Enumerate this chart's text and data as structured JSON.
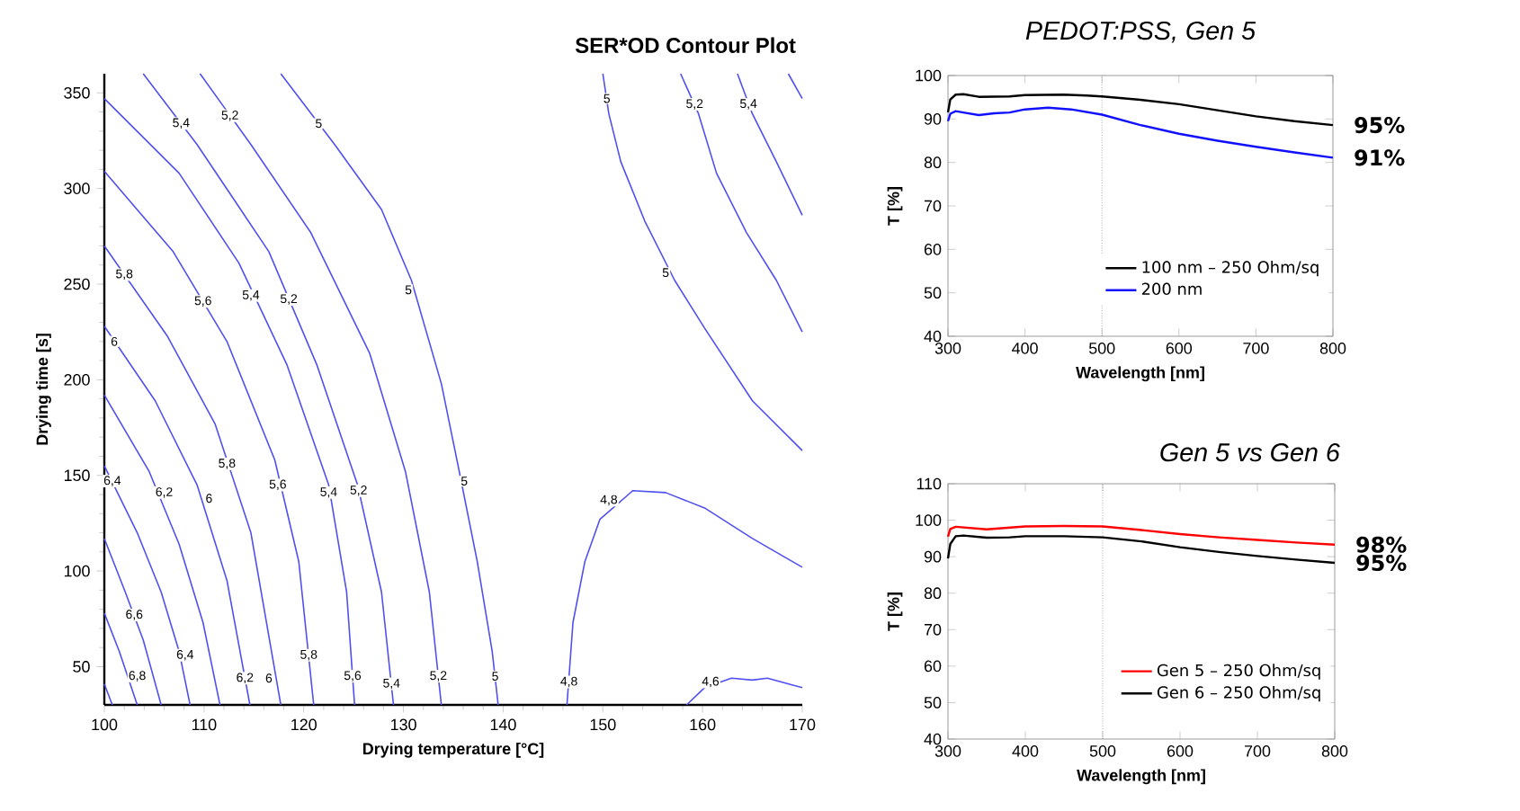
{
  "chart_data": [
    {
      "type": "line",
      "title": "SER*OD Contour Plot",
      "xlabel": "Drying temperature [°C]",
      "ylabel": "Drying time [s]",
      "xlim": [
        100,
        170
      ],
      "ylim": [
        30,
        360
      ],
      "xticks": [
        100,
        110,
        120,
        130,
        140,
        150,
        160,
        170
      ],
      "yticks": [
        50,
        100,
        150,
        200,
        250,
        300,
        350
      ],
      "series": [
        {
          "color": "#5050f0",
          "x": [
            100,
            100.8
          ],
          "values": [
            41,
            30
          ]
        },
        {
          "color": "#5050f0",
          "x": [
            100,
            101.5,
            103.3
          ],
          "values": [
            78,
            58,
            30
          ]
        },
        {
          "color": "#5050f0",
          "x": [
            100,
            102.1,
            103.9,
            105.7
          ],
          "values": [
            117,
            89,
            64,
            30
          ]
        },
        {
          "color": "#5050f0",
          "x": [
            100,
            103.3,
            105.7,
            107.5,
            108.6
          ],
          "values": [
            155,
            120,
            89,
            58,
            30
          ]
        },
        {
          "color": "#5050f0",
          "x": [
            100,
            104.5,
            107.5,
            109.9,
            111.6
          ],
          "values": [
            192,
            152,
            114,
            73,
            30
          ]
        },
        {
          "color": "#5050f0",
          "x": [
            100,
            105.1,
            109.3,
            112.3,
            114.6
          ],
          "values": [
            228,
            189,
            145,
            95,
            30
          ]
        },
        {
          "color": "#5050f0",
          "x": [
            100,
            106.3,
            111.1,
            114.7,
            117.7
          ],
          "values": [
            270,
            223,
            177,
            120,
            30
          ]
        },
        {
          "color": "#5050f0",
          "x": [
            100,
            106.9,
            112.3,
            117.1,
            119.5,
            121.0
          ],
          "values": [
            309,
            267,
            220,
            158,
            105,
            30
          ]
        },
        {
          "color": "#5050f0",
          "x": [
            100,
            107.5,
            113.5,
            118.3,
            122.5,
            124.3,
            125.1
          ],
          "values": [
            347,
            308,
            261,
            208,
            145,
            89,
            30
          ]
        },
        {
          "color": "#5050f0",
          "x": [
            103.9,
            109.3,
            116.5,
            121.3,
            125.4,
            127.8,
            129.0
          ],
          "values": [
            360,
            323,
            267,
            208,
            145,
            89,
            30
          ]
        },
        {
          "color": "#5050f0",
          "x": [
            109.6,
            114.7,
            120.7,
            126.6,
            130.2,
            132.6,
            133.8
          ],
          "values": [
            360,
            323,
            277,
            214,
            152,
            89,
            30
          ]
        },
        {
          "color": "#5050f0",
          "x": [
            117.7,
            123.1,
            127.8,
            130.8,
            133.8,
            135.6,
            137.4,
            138.9,
            139.5
          ],
          "values": [
            360,
            323,
            289,
            252,
            198,
            152,
            105,
            58,
            30
          ]
        },
        {
          "color": "#5050f0",
          "x": [
            150.0,
            150.6,
            151.8,
            154.2,
            157.2,
            160.2,
            165.0,
            170
          ],
          "values": [
            360,
            339,
            314,
            283,
            252,
            227,
            189,
            163
          ]
        },
        {
          "color": "#5050f0",
          "x": [
            157.8,
            159.6,
            161.4,
            164.4,
            167.4,
            170
          ],
          "values": [
            360,
            339,
            308,
            277,
            252,
            225
          ]
        },
        {
          "color": "#5050f0",
          "x": [
            163.5,
            165.0,
            167.4,
            170
          ],
          "values": [
            360,
            339,
            314,
            286
          ]
        },
        {
          "color": "#5050f0",
          "x": [
            168.6,
            170
          ],
          "values": [
            360,
            347
          ]
        },
        {
          "color": "#5050f0",
          "x": [
            146.4,
            147.0,
            148.2,
            149.7,
            153.0,
            156.3,
            160.2,
            165.0,
            170
          ],
          "values": [
            30,
            73,
            105,
            127,
            142,
            141,
            133,
            117,
            102
          ]
        },
        {
          "color": "#5050f0",
          "x": [
            158.4,
            160.2,
            162.9,
            165.0,
            166.5,
            170
          ],
          "values": [
            30,
            39,
            44,
            43,
            44,
            39
          ]
        }
      ],
      "annotations": [
        {
          "text": "5,4",
          "x": 107.7,
          "y": 334
        },
        {
          "text": "5,2",
          "x": 112.6,
          "y": 338
        },
        {
          "text": "5",
          "x": 121.5,
          "y": 334
        },
        {
          "text": "5,8",
          "x": 102.0,
          "y": 255
        },
        {
          "text": "6",
          "x": 101.0,
          "y": 220
        },
        {
          "text": "5,6",
          "x": 109.9,
          "y": 241
        },
        {
          "text": "5,4",
          "x": 114.7,
          "y": 244
        },
        {
          "text": "5,2",
          "x": 118.5,
          "y": 242
        },
        {
          "text": "5",
          "x": 130.5,
          "y": 247
        },
        {
          "text": "6,4",
          "x": 100.8,
          "y": 147
        },
        {
          "text": "6,2",
          "x": 106.0,
          "y": 141
        },
        {
          "text": "6",
          "x": 110.5,
          "y": 138
        },
        {
          "text": "5,8",
          "x": 112.3,
          "y": 156
        },
        {
          "text": "5,6",
          "x": 117.4,
          "y": 145
        },
        {
          "text": "5,4",
          "x": 122.5,
          "y": 141
        },
        {
          "text": "5,2",
          "x": 125.5,
          "y": 142
        },
        {
          "text": "5",
          "x": 136.1,
          "y": 147
        },
        {
          "text": "6,6",
          "x": 103.0,
          "y": 77
        },
        {
          "text": "6,8",
          "x": 103.3,
          "y": 45
        },
        {
          "text": "6,4",
          "x": 108.1,
          "y": 56
        },
        {
          "text": "6,2",
          "x": 114.1,
          "y": 44
        },
        {
          "text": "6",
          "x": 116.5,
          "y": 44
        },
        {
          "text": "5,8",
          "x": 120.5,
          "y": 56
        },
        {
          "text": "5,6",
          "x": 124.9,
          "y": 45
        },
        {
          "text": "5,4",
          "x": 128.8,
          "y": 41
        },
        {
          "text": "5,2",
          "x": 133.5,
          "y": 45
        },
        {
          "text": "5",
          "x": 139.2,
          "y": 45
        },
        {
          "text": "4,8",
          "x": 146.6,
          "y": 42
        },
        {
          "text": "4,8",
          "x": 150.6,
          "y": 137
        },
        {
          "text": "4,6",
          "x": 160.8,
          "y": 42
        },
        {
          "text": "5",
          "x": 150.4,
          "y": 347
        },
        {
          "text": "5,2",
          "x": 159.2,
          "y": 344
        },
        {
          "text": "5,4",
          "x": 164.6,
          "y": 344
        },
        {
          "text": "5",
          "x": 156.3,
          "y": 256
        }
      ]
    },
    {
      "type": "line",
      "title": "PEDOT:PSS, Gen 5",
      "xlabel": "Wavelength [nm]",
      "ylabel": "T [%]",
      "xlim": [
        300,
        800
      ],
      "ylim": [
        40,
        100
      ],
      "xticks": [
        300,
        400,
        500,
        600,
        700,
        800
      ],
      "yticks": [
        40,
        50,
        60,
        70,
        80,
        90,
        100
      ],
      "legend": "bottom right",
      "series": [
        {
          "name": "100 nm – 250 Ohm/sq",
          "color": "#000000",
          "x": [
            300,
            303,
            310,
            320,
            340,
            380,
            400,
            450,
            480,
            500,
            550,
            600,
            650,
            700,
            750,
            800
          ],
          "values": [
            91.5,
            94.5,
            95.6,
            95.7,
            95.1,
            95.2,
            95.5,
            95.6,
            95.4,
            95.2,
            94.4,
            93.4,
            92.0,
            90.6,
            89.5,
            88.6
          ]
        },
        {
          "name": "200 nm",
          "color": "#1010ff",
          "x": [
            300,
            303,
            310,
            320,
            340,
            360,
            380,
            400,
            430,
            460,
            500,
            550,
            600,
            650,
            700,
            750,
            800
          ],
          "values": [
            89.5,
            91.2,
            91.8,
            91.5,
            90.9,
            91.3,
            91.5,
            92.2,
            92.6,
            92.2,
            91.0,
            88.6,
            86.6,
            85.0,
            83.6,
            82.3,
            81.1
          ]
        }
      ],
      "ref_lines": [
        {
          "axis": "x",
          "value": 500,
          "color": "#808080",
          "line_style": "dotted"
        }
      ],
      "annotations": [
        {
          "text": "95%",
          "x": 800,
          "y": 88.6
        },
        {
          "text": "91%",
          "x": 800,
          "y": 81.1
        }
      ]
    },
    {
      "type": "line",
      "title": "Gen 5 vs Gen 6",
      "xlabel": "Wavelength [nm]",
      "ylabel": "T [%]",
      "xlim": [
        300,
        800
      ],
      "ylim": [
        40,
        110
      ],
      "xticks": [
        300,
        400,
        500,
        600,
        700,
        800
      ],
      "yticks": [
        40,
        50,
        60,
        70,
        80,
        90,
        100,
        110
      ],
      "legend": "bottom right",
      "series": [
        {
          "name": "Gen 5 – 250 Ohm/sq",
          "color": "#ff0000",
          "x": [
            300,
            303,
            310,
            350,
            400,
            450,
            500,
            550,
            600,
            650,
            700,
            750,
            800
          ],
          "values": [
            95.5,
            97.6,
            98.2,
            97.5,
            98.3,
            98.4,
            98.3,
            97.3,
            96.2,
            95.3,
            94.6,
            93.9,
            93.3
          ]
        },
        {
          "name": "Gen 6 – 250 Ohm/sq",
          "color": "#000000",
          "x": [
            300,
            303,
            310,
            320,
            350,
            380,
            400,
            450,
            500,
            550,
            600,
            650,
            700,
            750,
            800
          ],
          "values": [
            89.5,
            93.5,
            95.6,
            95.8,
            95.2,
            95.3,
            95.6,
            95.6,
            95.3,
            94.2,
            92.6,
            91.3,
            90.2,
            89.2,
            88.3
          ]
        }
      ],
      "ref_lines": [
        {
          "axis": "x",
          "value": 500,
          "color": "#808080",
          "line_style": "dotted"
        }
      ],
      "annotations": [
        {
          "text": "98%",
          "x": 800,
          "y": 93.3
        },
        {
          "text": "95%",
          "x": 800,
          "y": 88.3
        }
      ]
    }
  ]
}
